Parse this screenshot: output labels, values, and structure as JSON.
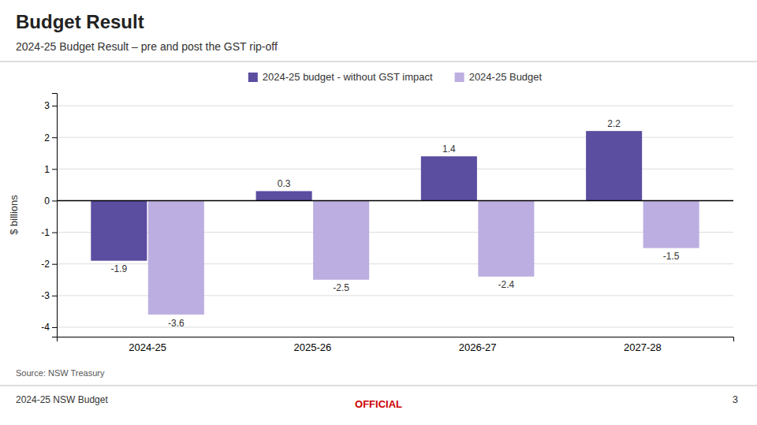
{
  "chart_data": {
    "type": "bar",
    "title": "Budget Result",
    "subtitle": "2024-25 Budget Result – pre and post the GST rip-off",
    "categories": [
      "2024-25",
      "2025-26",
      "2026-27",
      "2027-28"
    ],
    "series": [
      {
        "name": "2024-25 budget - without GST impact",
        "color": "#5B4DA0",
        "values": [
          -1.9,
          0.3,
          1.4,
          2.2
        ]
      },
      {
        "name": "2024-25 Budget",
        "color": "#BCAEE0",
        "values": [
          -3.6,
          -2.5,
          -2.4,
          -1.5
        ]
      }
    ],
    "ylabel": "$ billions",
    "ylim": [
      -4.3,
      3.4
    ],
    "yticks": [
      -4,
      -3,
      -2,
      -1,
      0,
      1,
      2,
      3
    ],
    "grid": true,
    "legend": "top",
    "data_labels": true,
    "annotations": [
      "Source: NSW Treasury",
      "2024-25 NSW Budget",
      "OFFICIAL",
      "3"
    ]
  }
}
